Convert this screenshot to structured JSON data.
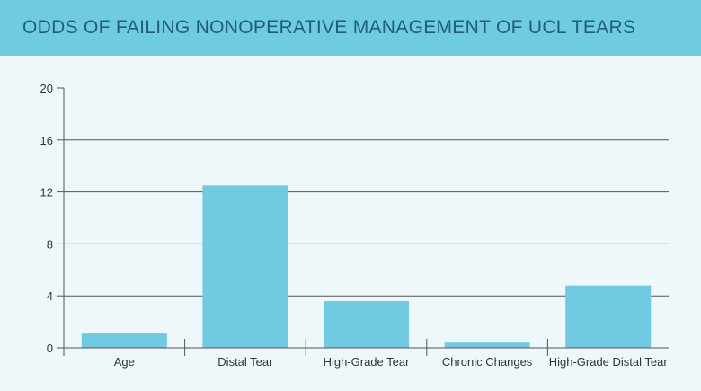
{
  "header": {
    "title": "ODDS OF FAILING NONOPERATIVE MANAGEMENT OF UCL TEARS"
  },
  "colors": {
    "header_bg": "#6fcbe2",
    "bar": "#6fcbe2",
    "page_bg": "#eef8fb",
    "grid": "#555555",
    "text": "#333333"
  },
  "chart_data": {
    "type": "bar",
    "title": "ODDS OF FAILING NONOPERATIVE MANAGEMENT OF UCL TEARS",
    "categories": [
      "Age",
      "Distal Tear",
      "High-Grade Tear",
      "Chronic Changes",
      "High-Grade Distal Tear"
    ],
    "values": [
      1.1,
      12.5,
      3.6,
      0.4,
      4.8
    ],
    "ylim": [
      0,
      20
    ],
    "yticks": [
      0,
      4,
      8,
      12,
      16,
      20
    ],
    "xlabel": "",
    "ylabel": "",
    "grid": true,
    "legend": "none"
  }
}
